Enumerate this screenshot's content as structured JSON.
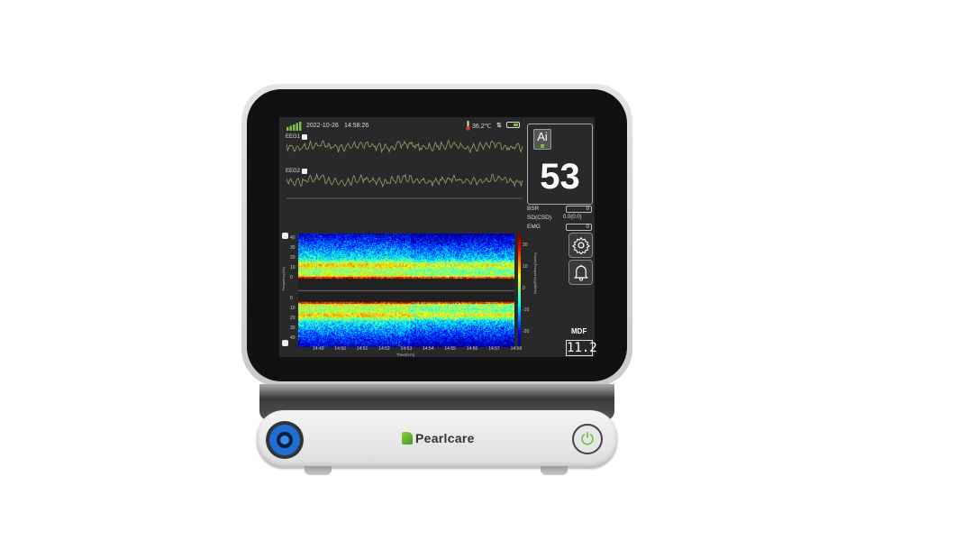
{
  "status": {
    "date": "2022-10-26",
    "time": "14:58:26",
    "temperature": "36.2℃",
    "signal_icon": "signal-bars-icon",
    "battery_icon": "battery-icon"
  },
  "eeg": {
    "channel1": "EEG1",
    "channel2": "EEG2",
    "wave_color": "#8fa86a"
  },
  "index": {
    "ai_label": "Ai",
    "value": "53"
  },
  "params": {
    "bsr_label": "BSR",
    "bsr_value": "0",
    "sd_label": "SD(CSD)",
    "sd_value": "0.0(0.0)",
    "emg_label": "EMG",
    "emg_value": "0"
  },
  "mdf": {
    "label": "MDF",
    "value": "11.2"
  },
  "chart_data": {
    "type": "heatmap",
    "ylabel": "Frequency(Hz)",
    "xlabel": "Time(h:m)",
    "colorbar_label": "Power(Frequency)(dB/Hz)",
    "y_ticks_top": [
      "40",
      "30",
      "20",
      "10",
      "0"
    ],
    "y_ticks_bottom": [
      "0",
      "10",
      "20",
      "30",
      "40"
    ],
    "x_ticks": [
      "14:49",
      "14:50",
      "14:51",
      "14:52",
      "14:53",
      "14:54",
      "14:55",
      "14:56",
      "14:57",
      "14:58"
    ],
    "colorbar_ticks": [
      "20",
      "10",
      "0",
      "-10",
      "-20"
    ],
    "colormap": "jet"
  },
  "brand": {
    "name": "Pearlcare",
    "accent": "#6ab82c"
  }
}
